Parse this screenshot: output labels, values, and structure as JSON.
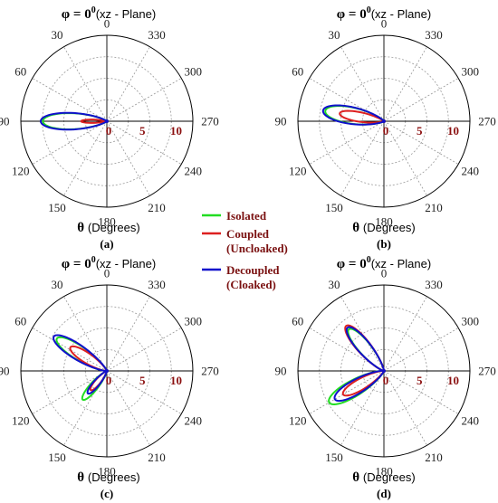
{
  "figure": {
    "legend": [
      {
        "name": "Isolated",
        "color": "#22dd22"
      },
      {
        "name": "Coupled (Uncloaked)",
        "lines": [
          "Coupled",
          "(Uncloaked)"
        ],
        "color": "#dd2020"
      },
      {
        "name": "Decoupled (Cloaked)",
        "lines": [
          "Decoupled",
          "(Cloaked)"
        ],
        "color": "#1010cc"
      }
    ],
    "colors": {
      "grid": "#9a9a9a",
      "axis": "#000000",
      "radial_labels": "#8b1010",
      "legend_text": "#7a1010"
    }
  },
  "chart_data": [
    {
      "type": "polar",
      "panel_label": "(a)",
      "title": "φ = 0⁰ (xz - Plane)",
      "title_main": "φ = 0",
      "title_sup": "0",
      "title_plane": "(xz - Plane)",
      "xlabel": "θ (Degrees)",
      "xlabel_symbol": "θ",
      "xlabel_rest": "(Degrees)",
      "angular_ticks": [
        "0",
        "30",
        "60",
        "90",
        "120",
        "150",
        "180",
        "210",
        "240",
        "270",
        "300",
        "330"
      ],
      "radial_ticks": [
        "0",
        "5",
        "10"
      ],
      "radial_range": [
        0,
        10
      ],
      "grid": true,
      "series": [
        {
          "name": "Isolated",
          "color": "#22dd22",
          "lobes": [
            {
              "direction_deg": 90,
              "peak": 8.6,
              "width_deg": 12
            }
          ]
        },
        {
          "name": "Coupled (Uncloaked)",
          "color": "#dd2020",
          "lobes": [
            {
              "direction_deg": 90,
              "peak": 3.4,
              "width_deg": 6
            }
          ]
        },
        {
          "name": "Decoupled (Cloaked)",
          "color": "#1010cc",
          "lobes": [
            {
              "direction_deg": 90,
              "peak": 8.9,
              "width_deg": 12
            }
          ]
        }
      ]
    },
    {
      "type": "polar",
      "panel_label": "(b)",
      "title": "φ = 0⁰ (xz - Plane)",
      "title_main": "φ = 0",
      "title_sup": "0",
      "title_plane": "(xz - Plane)",
      "xlabel": "θ (Degrees)",
      "xlabel_symbol": "θ",
      "xlabel_rest": "(Degrees)",
      "angular_ticks": [
        "0",
        "30",
        "60",
        "90",
        "120",
        "150",
        "180",
        "210",
        "240",
        "270",
        "300",
        "330"
      ],
      "radial_ticks": [
        "0",
        "5",
        "10"
      ],
      "radial_range": [
        0,
        10
      ],
      "grid": true,
      "series": [
        {
          "name": "Isolated",
          "color": "#22dd22",
          "lobes": [
            {
              "direction_deg": 80,
              "peak": 8.0,
              "width_deg": 13
            }
          ]
        },
        {
          "name": "Coupled (Uncloaked)",
          "color": "#dd2020",
          "lobes": [
            {
              "direction_deg": 80,
              "peak": 6.0,
              "width_deg": 10
            }
          ]
        },
        {
          "name": "Decoupled (Cloaked)",
          "color": "#1010cc",
          "lobes": [
            {
              "direction_deg": 80,
              "peak": 8.3,
              "width_deg": 13
            }
          ]
        }
      ]
    },
    {
      "type": "polar",
      "panel_label": "(c)",
      "title": "φ = 0⁰ (xz - Plane)",
      "title_main": "φ = 0",
      "title_sup": "0",
      "title_plane": "(xz - Plane)",
      "xlabel": "θ (Degrees)",
      "xlabel_symbol": "θ",
      "xlabel_rest": "(Degrees)",
      "angular_ticks": [
        "0",
        "30",
        "60",
        "90",
        "120",
        "150",
        "180",
        "210",
        "240",
        "270",
        "300",
        "330"
      ],
      "radial_ticks": [
        "0",
        "5",
        "10"
      ],
      "radial_range": [
        0,
        10
      ],
      "grid": true,
      "series": [
        {
          "name": "Isolated",
          "color": "#22dd22",
          "lobes": [
            {
              "direction_deg": 57,
              "peak": 8.0,
              "width_deg": 11
            },
            {
              "direction_deg": 140,
              "peak": 5.0,
              "width_deg": 10
            }
          ]
        },
        {
          "name": "Coupled (Uncloaked)",
          "color": "#dd2020",
          "lobes": [
            {
              "direction_deg": 57,
              "peak": 5.8,
              "width_deg": 11
            },
            {
              "direction_deg": 140,
              "peak": 3.3,
              "width_deg": 10
            }
          ]
        },
        {
          "name": "Decoupled (Cloaked)",
          "color": "#1010cc",
          "lobes": [
            {
              "direction_deg": 57,
              "peak": 8.5,
              "width_deg": 11
            },
            {
              "direction_deg": 140,
              "peak": 3.9,
              "width_deg": 10
            }
          ]
        }
      ]
    },
    {
      "type": "polar",
      "panel_label": "(d)",
      "title": "φ = 0⁰ (xz - Plane)",
      "title_main": "φ = 0",
      "title_sup": "0",
      "title_plane": "(xz - Plane)",
      "xlabel": "θ (Degrees)",
      "xlabel_symbol": "θ",
      "xlabel_rest": "(Degrees)",
      "angular_ticks": [
        "0",
        "30",
        "60",
        "90",
        "120",
        "150",
        "180",
        "210",
        "240",
        "270",
        "300",
        "330"
      ],
      "radial_ticks": [
        "0",
        "5",
        "10"
      ],
      "radial_range": [
        0,
        10
      ],
      "grid": true,
      "series": [
        {
          "name": "Isolated",
          "color": "#22dd22",
          "lobes": [
            {
              "direction_deg": 40,
              "peak": 7.3,
              "width_deg": 11
            },
            {
              "direction_deg": 120,
              "peak": 8.5,
              "width_deg": 12
            }
          ]
        },
        {
          "name": "Coupled (Uncloaked)",
          "color": "#dd2020",
          "lobes": [
            {
              "direction_deg": 40,
              "peak": 7.9,
              "width_deg": 11
            },
            {
              "direction_deg": 120,
              "peak": 6.3,
              "width_deg": 11
            }
          ]
        },
        {
          "name": "Decoupled (Cloaked)",
          "color": "#1010cc",
          "lobes": [
            {
              "direction_deg": 40,
              "peak": 7.6,
              "width_deg": 11
            },
            {
              "direction_deg": 120,
              "peak": 7.6,
              "width_deg": 12
            }
          ]
        }
      ]
    }
  ]
}
